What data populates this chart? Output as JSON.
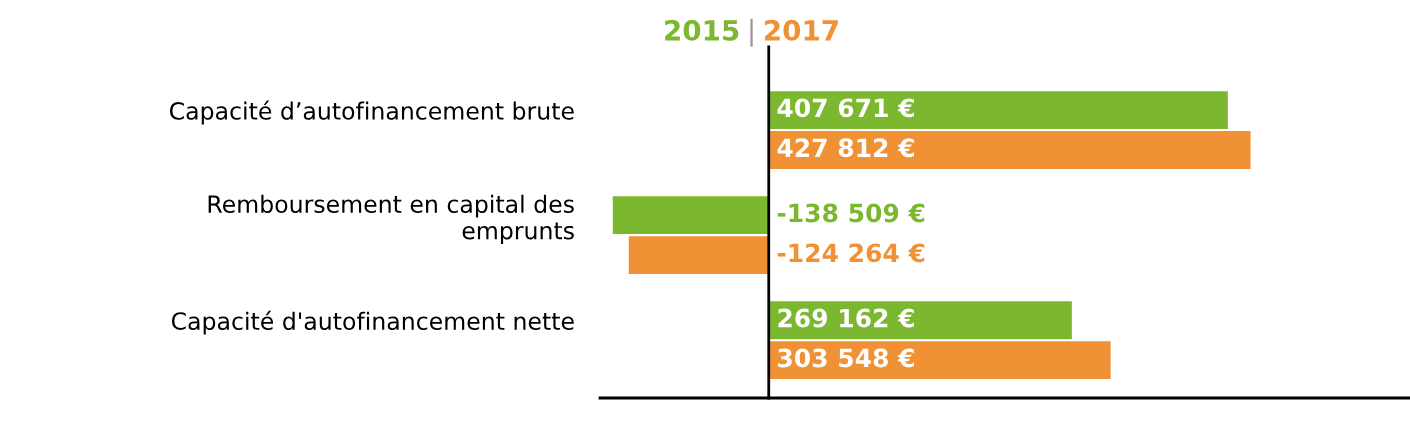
{
  "chart_data": {
    "type": "bar",
    "orientation": "horizontal",
    "legend": "top",
    "categories": [
      "Capacité d’autofinancement brute",
      "Remboursement en capital des\nemprunts",
      "Capacité d'autofinancement nette"
    ],
    "annotations": [
      "|"
    ],
    "series": [
      {
        "name": "2015",
        "color": "#7cb82f",
        "values": [
          407671,
          -138509,
          269162
        ],
        "value_labels": [
          "407 671 €",
          "-138 509 €",
          "269 162 €"
        ]
      },
      {
        "name": "2017",
        "color": "#ef9134",
        "values": [
          427812,
          -124264,
          303548
        ],
        "value_labels": [
          "427 812 €",
          "-124 264 €",
          "303 548 €"
        ]
      }
    ]
  }
}
